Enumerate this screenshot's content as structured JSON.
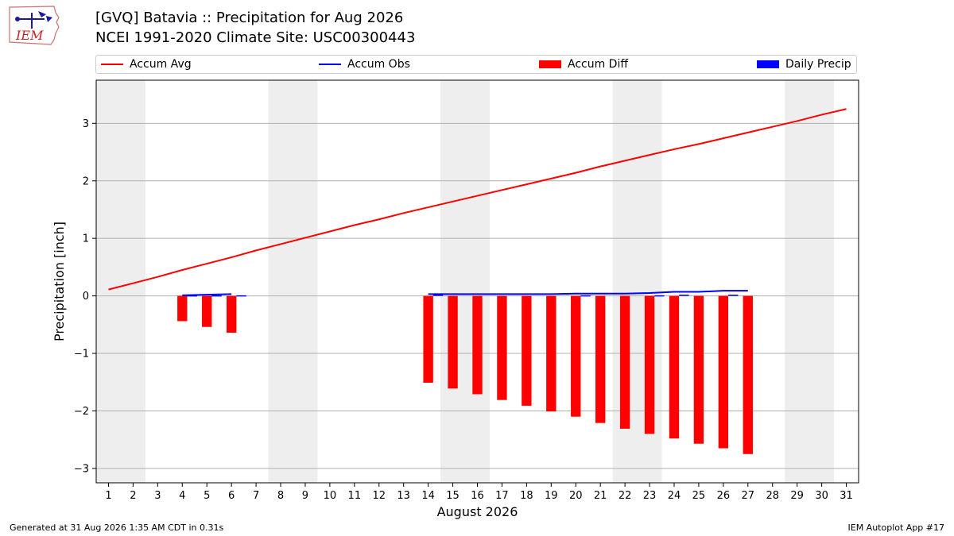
{
  "logo": {
    "text": "IEM"
  },
  "header": {
    "title": "[GVQ] Batavia :: Precipitation for Aug 2026",
    "subtitle": "NCEI 1991-2020 Climate Site: USC00300443"
  },
  "legend": {
    "placement": "top",
    "items": [
      {
        "label": "Accum Avg",
        "kind": "line",
        "color": "#ff0000"
      },
      {
        "label": "Accum Obs",
        "kind": "line",
        "color": "#0000ff"
      },
      {
        "label": "Accum Diff",
        "kind": "box",
        "color": "#ff0000"
      },
      {
        "label": "Daily Precip",
        "kind": "box",
        "color": "#0000ff"
      }
    ]
  },
  "chart_data": {
    "type": "bar",
    "xlabel": "August 2026",
    "ylabel": "Precipitation [inch]",
    "xlim": [
      0.5,
      31.5
    ],
    "ylim": [
      -3.25,
      3.75
    ],
    "yticks": [
      -3,
      -2,
      -1,
      0,
      1,
      2,
      3
    ],
    "yticklabels": [
      "−3",
      "−2",
      "−1",
      "0",
      "1",
      "2",
      "3"
    ],
    "days": [
      1,
      2,
      3,
      4,
      5,
      6,
      7,
      8,
      9,
      10,
      11,
      12,
      13,
      14,
      15,
      16,
      17,
      18,
      19,
      20,
      21,
      22,
      23,
      24,
      25,
      26,
      27,
      28,
      29,
      30,
      31
    ],
    "grid": true,
    "weekend_shading": [
      [
        0.5,
        2.5
      ],
      [
        7.5,
        9.5
      ],
      [
        14.5,
        16.5
      ],
      [
        21.5,
        23.5
      ],
      [
        28.5,
        30.5
      ]
    ],
    "series": [
      {
        "name": "Accum Avg",
        "kind": "line",
        "color": "#ff0000",
        "x": [
          1,
          2,
          3,
          4,
          5,
          6,
          7,
          8,
          9,
          10,
          11,
          12,
          13,
          14,
          15,
          16,
          17,
          18,
          19,
          20,
          21,
          22,
          23,
          24,
          25,
          26,
          27,
          28,
          29,
          30,
          31
        ],
        "values": [
          0.11,
          0.22,
          0.33,
          0.45,
          0.56,
          0.67,
          0.79,
          0.9,
          1.01,
          1.12,
          1.23,
          1.33,
          1.44,
          1.54,
          1.64,
          1.74,
          1.84,
          1.94,
          2.04,
          2.14,
          2.25,
          2.35,
          2.45,
          2.55,
          2.64,
          2.74,
          2.84,
          2.94,
          3.04,
          3.15,
          3.25
        ]
      },
      {
        "name": "Accum Obs",
        "kind": "line",
        "color": "#0000ff",
        "segments": [
          {
            "x": [
              4,
              5,
              6
            ],
            "values": [
              0.01,
              0.02,
              0.03
            ]
          },
          {
            "x": [
              14,
              15,
              16,
              17,
              18,
              19,
              20,
              21,
              22,
              23,
              24,
              25,
              26,
              27
            ],
            "values": [
              0.03,
              0.03,
              0.03,
              0.03,
              0.03,
              0.03,
              0.04,
              0.04,
              0.04,
              0.05,
              0.07,
              0.07,
              0.09,
              0.09
            ]
          }
        ]
      },
      {
        "name": "Accum Diff",
        "kind": "bar",
        "color": "#ff0000",
        "x": [
          4,
          5,
          6,
          14,
          15,
          16,
          17,
          18,
          19,
          20,
          21,
          22,
          23,
          24,
          25,
          26,
          27
        ],
        "values": [
          -0.44,
          -0.54,
          -0.64,
          -1.51,
          -1.61,
          -1.71,
          -1.81,
          -1.91,
          -2.01,
          -2.1,
          -2.21,
          -2.31,
          -2.4,
          -2.48,
          -2.57,
          -2.65,
          -2.75
        ]
      },
      {
        "name": "Daily Precip",
        "kind": "bar",
        "color": "#0000ff",
        "x": [
          4,
          5,
          6,
          14,
          20,
          23,
          24,
          26
        ],
        "values": [
          0.01,
          0.01,
          0.01,
          0.03,
          0.01,
          0.01,
          0.02,
          0.02
        ]
      }
    ]
  },
  "footer": {
    "generated": "Generated at 31 Aug 2026 1:35 AM CDT in 0.31s",
    "app": "IEM Autoplot App #17"
  }
}
